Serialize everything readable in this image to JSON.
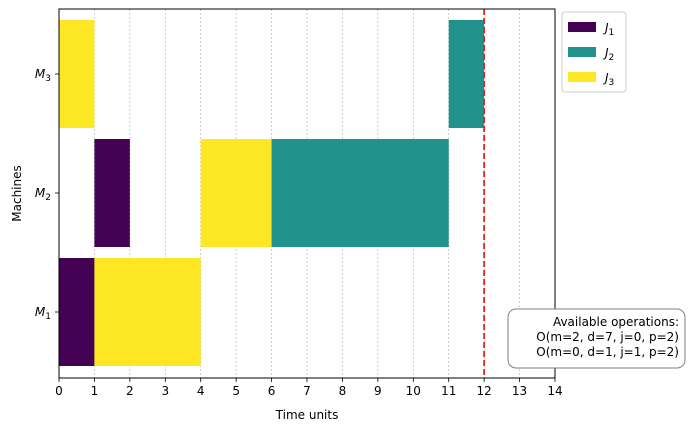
{
  "chart_data": {
    "type": "gantt",
    "xlabel": "Time units",
    "ylabel": "Machines",
    "xlim": [
      0,
      14
    ],
    "x_ticks": [
      0,
      1,
      2,
      3,
      4,
      5,
      6,
      7,
      8,
      9,
      10,
      11,
      12,
      13,
      14
    ],
    "grid": "vertical dashed",
    "machines": [
      {
        "id": "M1",
        "label": "M",
        "sub": "1"
      },
      {
        "id": "M2",
        "label": "M",
        "sub": "2"
      },
      {
        "id": "M3",
        "label": "M",
        "sub": "3"
      }
    ],
    "jobs": [
      {
        "id": "J1",
        "label": "J",
        "sub": "1",
        "color": "#440154"
      },
      {
        "id": "J2",
        "label": "J",
        "sub": "2",
        "color": "#21918c"
      },
      {
        "id": "J3",
        "label": "J",
        "sub": "3",
        "color": "#fde725"
      }
    ],
    "tasks": [
      {
        "machine": "M1",
        "job": "J1",
        "start": 0,
        "end": 1
      },
      {
        "machine": "M1",
        "job": "J3",
        "start": 1,
        "end": 4
      },
      {
        "machine": "M2",
        "job": "J1",
        "start": 1,
        "end": 2
      },
      {
        "machine": "M2",
        "job": "J3",
        "start": 4,
        "end": 6
      },
      {
        "machine": "M2",
        "job": "J2",
        "start": 6,
        "end": 11
      },
      {
        "machine": "M3",
        "job": "J3",
        "start": 0,
        "end": 1
      },
      {
        "machine": "M3",
        "job": "J2",
        "start": 11,
        "end": 12
      }
    ],
    "current_time": 12,
    "current_time_color": "#d62728",
    "legend_placement": "upper-right-outside",
    "annotation": {
      "lines": [
        "Available operations:",
        "O(m=2, d=7, j=0, p=2)",
        "O(m=0, d=1, j=1, p=2)"
      ]
    }
  }
}
